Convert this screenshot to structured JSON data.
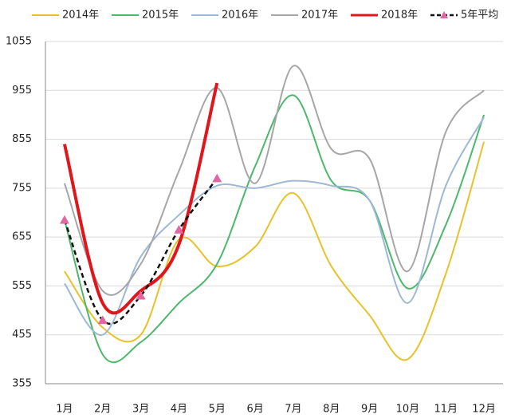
{
  "chart_data": {
    "type": "line",
    "categories": [
      "1月",
      "2月",
      "3月",
      "4月",
      "5月",
      "6月",
      "7月",
      "8月",
      "9月",
      "10月",
      "11月",
      "12月"
    ],
    "series": [
      {
        "name": "2014年",
        "color": "#e9c12b",
        "width": 2,
        "values": [
          585,
          470,
          455,
          650,
          595,
          635,
          745,
          595,
          495,
          405,
          580,
          850
        ]
      },
      {
        "name": "2015年",
        "color": "#4cb86b",
        "width": 2,
        "values": [
          690,
          415,
          440,
          520,
          600,
          800,
          945,
          770,
          730,
          550,
          680,
          905
        ]
      },
      {
        "name": "2016年",
        "color": "#9db8d6",
        "width": 2,
        "values": [
          560,
          455,
          615,
          700,
          760,
          755,
          770,
          760,
          730,
          520,
          760,
          900
        ]
      },
      {
        "name": "2017年",
        "color": "#a6a6a6",
        "width": 2,
        "values": [
          765,
          545,
          600,
          790,
          960,
          765,
          1005,
          835,
          815,
          585,
          870,
          955
        ]
      },
      {
        "name": "2018年",
        "color": "#e0161c",
        "width": 4,
        "values": [
          845,
          520,
          545,
          640,
          970,
          null,
          null,
          null,
          null,
          null,
          null,
          null
        ]
      },
      {
        "name": "5年平均",
        "color": "#111111",
        "width": 2.5,
        "dashed": true,
        "marker": "triangle",
        "marker_color": "#e366a0",
        "values": [
          690,
          485,
          535,
          670,
          775,
          null,
          null,
          null,
          null,
          null,
          null,
          null
        ]
      }
    ],
    "ylim": [
      355,
      1055
    ],
    "yticks": [
      355,
      455,
      555,
      655,
      755,
      855,
      955,
      1055
    ],
    "grid": true
  }
}
